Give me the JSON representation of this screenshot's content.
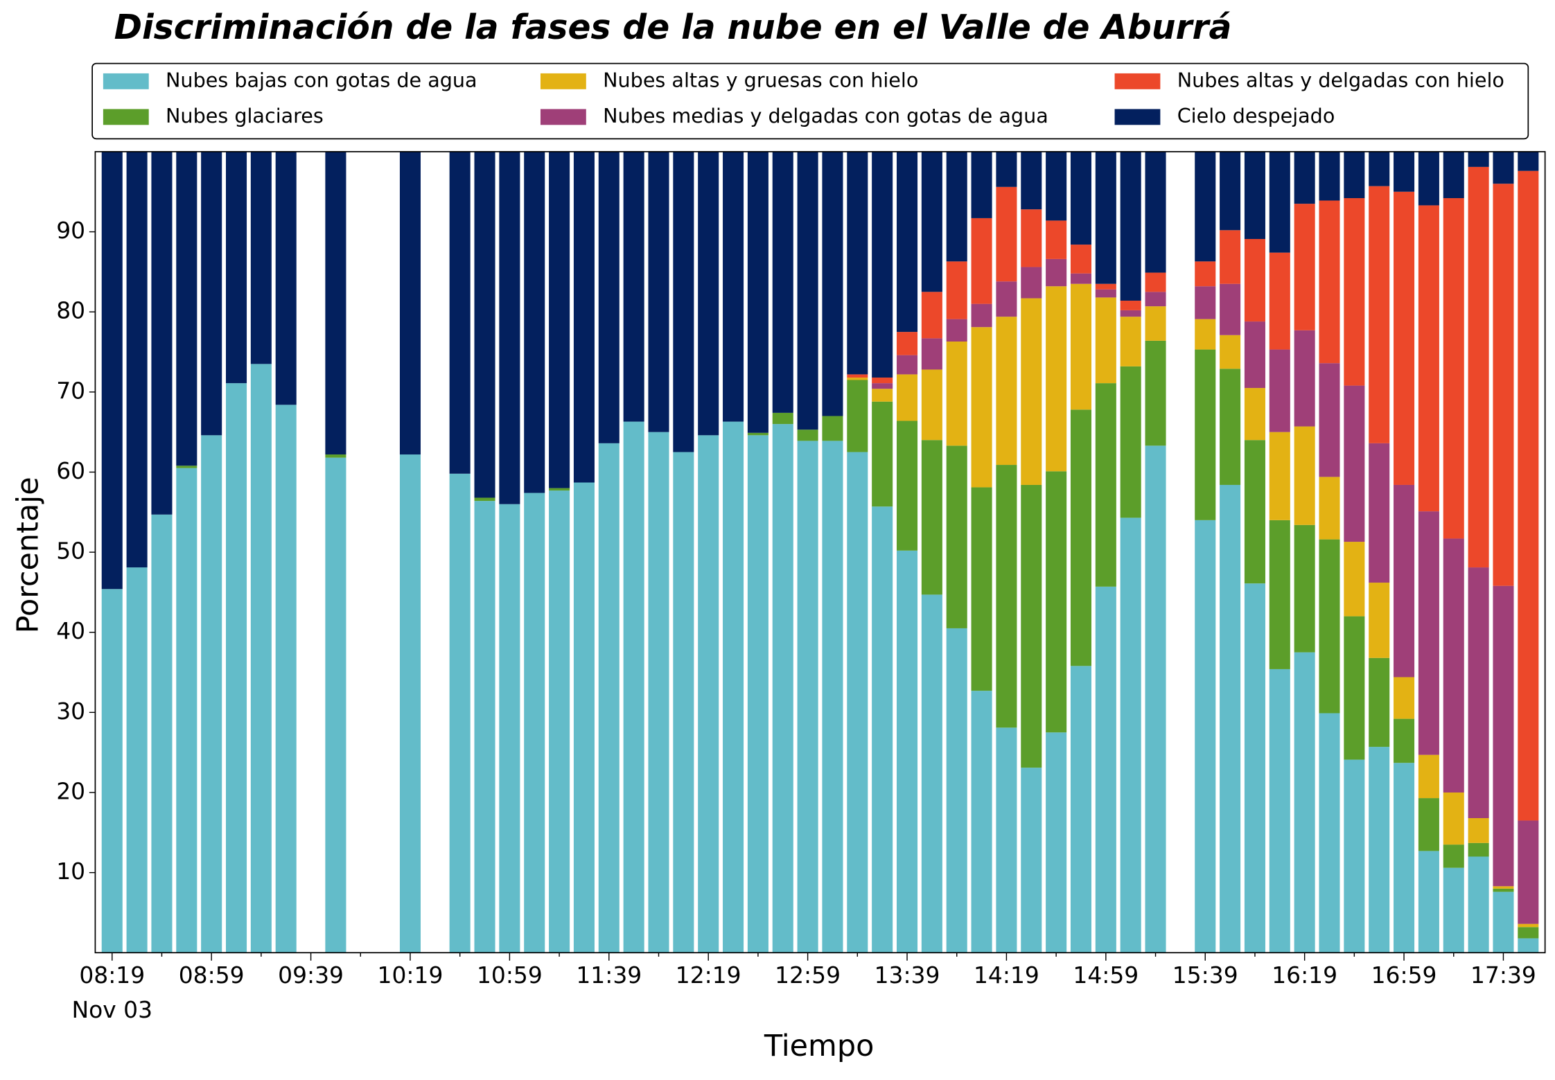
{
  "chart_data": {
    "type": "stacked_bar",
    "title": "Discriminación de la fases de la nube en el Valle de Aburrá",
    "x_label": "Tiempo",
    "y_label": "Porcentaje",
    "x_date_label": "Nov 03",
    "categories": [
      "08:19",
      null,
      null,
      null,
      "08:59",
      null,
      null,
      null,
      "09:39",
      null,
      null,
      null,
      "10:19",
      null,
      null,
      null,
      "10:59",
      null,
      null,
      null,
      "11:39",
      null,
      null,
      null,
      "12:19",
      null,
      null,
      null,
      "12:59",
      null,
      null,
      null,
      "13:39",
      null,
      null,
      null,
      "14:19",
      null,
      null,
      null,
      "14:59",
      null,
      null,
      null,
      "15:39",
      null,
      null,
      null,
      "16:19",
      null,
      null,
      null,
      "16:59",
      null,
      null,
      null,
      "17:39",
      null
    ],
    "ylim": [
      0,
      100
    ],
    "yticks": [
      10,
      20,
      30,
      40,
      50,
      60,
      70,
      80,
      90
    ],
    "series": [
      {
        "name": "Nubes bajas con gotas de agua",
        "color": "#63bcc9",
        "values": [
          45.4,
          48.1,
          54.7,
          60.5,
          64.6,
          71.1,
          73.5,
          68.4,
          null,
          61.8,
          null,
          null,
          62.2,
          null,
          59.8,
          56.4,
          56.0,
          57.4,
          57.7,
          58.7,
          63.6,
          66.3,
          65.0,
          62.5,
          64.6,
          66.3,
          64.6,
          66.0,
          63.9,
          63.9,
          62.5,
          55.7,
          50.2,
          44.7,
          40.5,
          32.7,
          28.1,
          23.1,
          27.5,
          35.8,
          45.7,
          54.3,
          63.3,
          null,
          54.0,
          58.4,
          46.1,
          35.4,
          37.5,
          29.9,
          24.1,
          25.7,
          23.7,
          12.7,
          10.6,
          12.0,
          7.6,
          1.8
        ]
      },
      {
        "name": "Nubes glaciares",
        "color": "#5c9e2a",
        "values": [
          0,
          0,
          0,
          0.3,
          0,
          0,
          0,
          0,
          null,
          0.4,
          null,
          null,
          0,
          null,
          0,
          0.4,
          0,
          0,
          0.3,
          0,
          0,
          0,
          0,
          0,
          0,
          0,
          0.3,
          1.4,
          1.4,
          3.1,
          9.0,
          13.1,
          16.2,
          19.3,
          22.8,
          25.4,
          32.8,
          35.3,
          32.6,
          32.0,
          25.4,
          18.9,
          13.1,
          null,
          21.3,
          14.5,
          17.9,
          18.6,
          15.9,
          21.7,
          17.9,
          11.1,
          5.5,
          6.6,
          2.9,
          1.7,
          0.4,
          1.4
        ]
      },
      {
        "name": "Nubes altas y gruesas con hielo",
        "color": "#e3b214",
        "values": [
          0,
          0,
          0,
          0,
          0,
          0,
          0,
          0,
          null,
          0,
          null,
          null,
          0,
          null,
          0,
          0,
          0,
          0,
          0,
          0,
          0,
          0,
          0,
          0,
          0,
          0,
          0,
          0,
          0,
          0,
          0.3,
          1.6,
          5.8,
          8.8,
          13.0,
          20.0,
          18.5,
          23.3,
          23.1,
          15.7,
          10.7,
          6.2,
          4.3,
          null,
          3.8,
          4.2,
          6.5,
          11.0,
          12.3,
          7.8,
          9.3,
          9.4,
          5.2,
          5.4,
          6.5,
          3.1,
          0.3,
          0.4
        ]
      },
      {
        "name": "Nubes medias y delgadas con gotas de agua",
        "color": "#9f3f78",
        "values": [
          0,
          0,
          0,
          0,
          0,
          0,
          0,
          0,
          null,
          0,
          null,
          null,
          0,
          null,
          0,
          0,
          0,
          0,
          0,
          0,
          0,
          0,
          0,
          0,
          0,
          0,
          0,
          0,
          0,
          0,
          0,
          0.7,
          2.4,
          3.9,
          2.8,
          2.9,
          4.4,
          3.9,
          3.4,
          1.3,
          1.0,
          0.8,
          1.8,
          null,
          4.1,
          6.4,
          8.3,
          10.3,
          12.0,
          14.2,
          19.5,
          17.4,
          24.0,
          30.4,
          31.7,
          31.3,
          37.5,
          12.9
        ]
      },
      {
        "name": "Nubes altas y delgadas con hielo",
        "color": "#ec482a",
        "values": [
          0,
          0,
          0,
          0,
          0,
          0,
          0,
          0,
          null,
          0,
          null,
          null,
          0,
          null,
          0,
          0,
          0,
          0,
          0,
          0,
          0,
          0,
          0,
          0,
          0,
          0,
          0,
          0,
          0,
          0,
          0.4,
          0.7,
          2.9,
          5.8,
          7.2,
          10.7,
          11.8,
          7.2,
          4.8,
          3.6,
          0.7,
          1.2,
          2.4,
          null,
          3.1,
          6.7,
          10.3,
          12.1,
          15.8,
          20.3,
          23.4,
          32.1,
          36.6,
          38.2,
          42.5,
          50.0,
          50.2,
          81.1
        ]
      },
      {
        "name": "Cielo despejado",
        "color": "#03205e",
        "values": [
          54.6,
          51.9,
          45.3,
          39.2,
          35.4,
          28.9,
          26.5,
          31.6,
          null,
          37.8,
          null,
          null,
          37.8,
          null,
          40.2,
          43.2,
          44.0,
          42.6,
          42.0,
          41.3,
          36.4,
          33.7,
          35.0,
          37.5,
          35.4,
          33.7,
          35.1,
          32.6,
          34.7,
          33.0,
          27.8,
          28.2,
          22.5,
          17.5,
          13.7,
          8.3,
          4.4,
          7.2,
          8.6,
          11.6,
          16.5,
          18.6,
          15.1,
          null,
          13.7,
          9.8,
          10.9,
          12.6,
          6.5,
          6.1,
          5.8,
          4.3,
          5.0,
          6.7,
          5.8,
          1.9,
          4.0,
          2.4
        ]
      }
    ]
  }
}
